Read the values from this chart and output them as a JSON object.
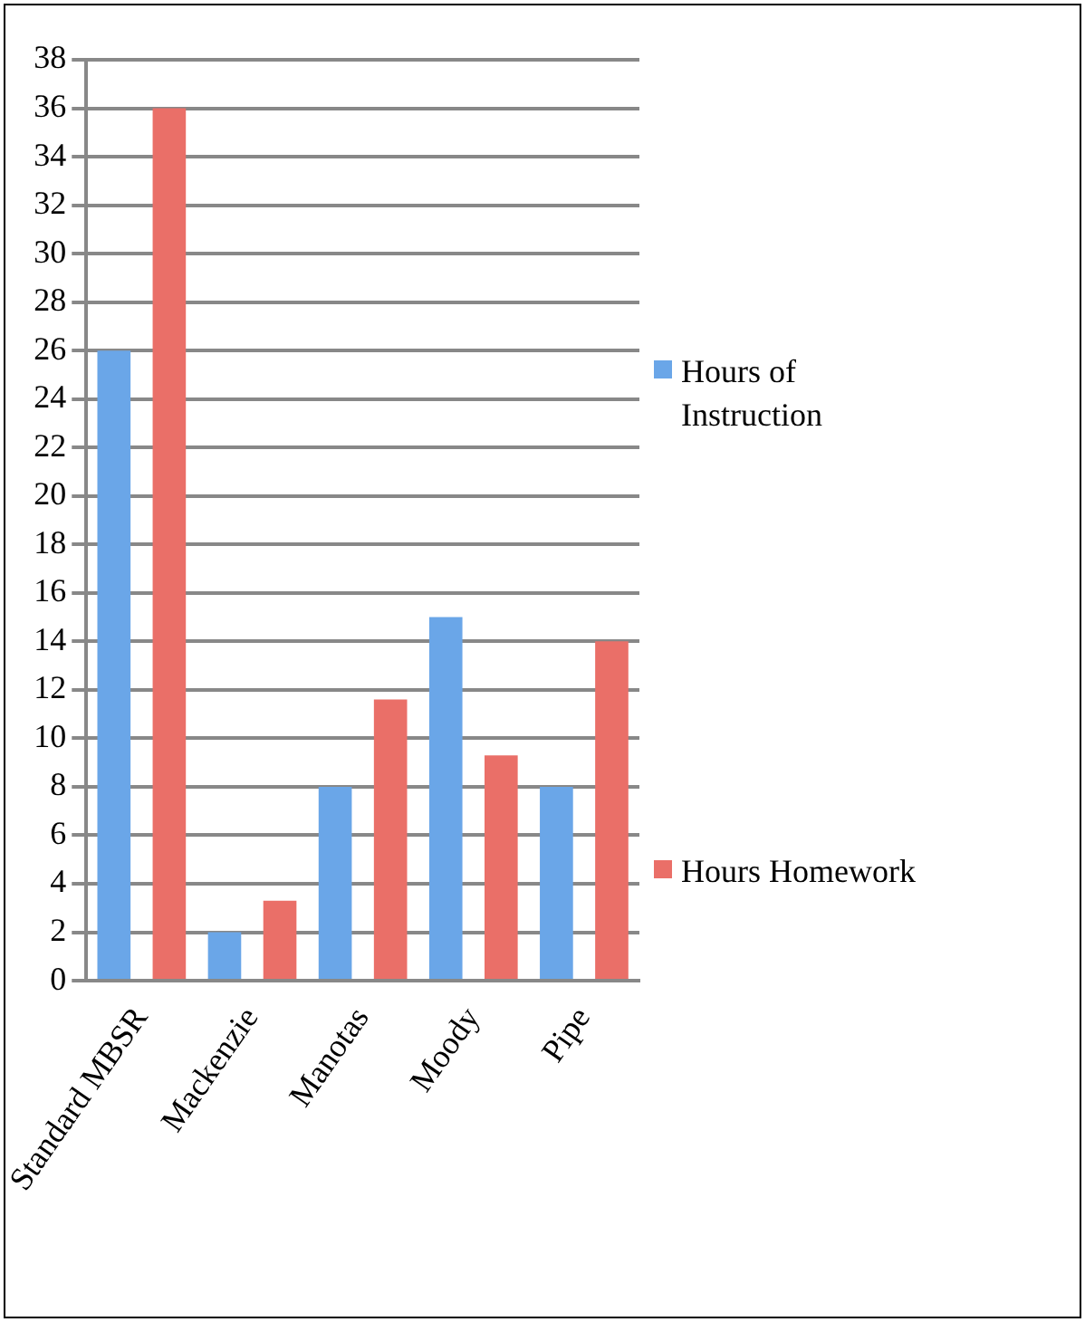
{
  "chart_data": {
    "type": "bar",
    "categories": [
      "Standard MBSR",
      "Mackenzie",
      "Manotas",
      "Moody",
      "Pipe"
    ],
    "series": [
      {
        "name": "Hours of Instruction",
        "color": "#6aa6e8",
        "values": [
          26,
          2,
          8,
          15,
          8
        ]
      },
      {
        "name": "Hours Homework",
        "color": "#ea6f68",
        "values": [
          36,
          3.3,
          11.6,
          9.3,
          14
        ]
      }
    ],
    "ylim": [
      0,
      38
    ],
    "yticks": [
      0,
      2,
      4,
      6,
      8,
      10,
      12,
      14,
      16,
      18,
      20,
      22,
      24,
      26,
      28,
      30,
      32,
      34,
      36,
      38
    ],
    "grid": "y",
    "legend": "right"
  }
}
